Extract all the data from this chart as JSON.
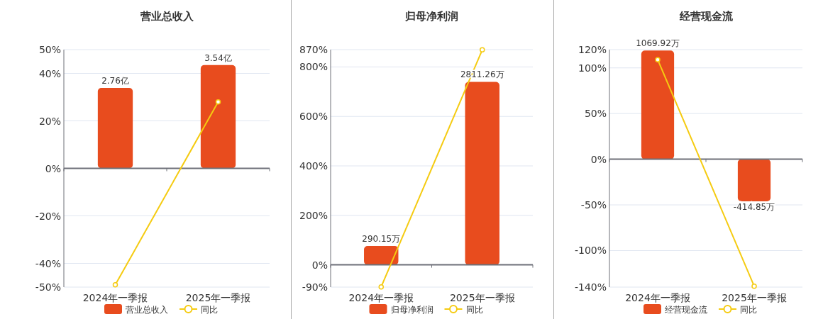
{
  "chart_data": [
    {
      "type": "bar",
      "title": "营业总收入",
      "categories": [
        "2024年一季报",
        "2025年一季报"
      ],
      "series": [
        {
          "name": "营业总收入",
          "color": "#e84c1e",
          "axis": "y2",
          "values": [
            2.76,
            3.54
          ],
          "value_labels": [
            "2.76亿",
            "3.54亿"
          ]
        },
        {
          "name": "同比",
          "type": "line",
          "color": "#f5cb11",
          "values": [
            -49,
            28
          ]
        }
      ],
      "ylim": [
        -50,
        50
      ],
      "yticks": [
        {
          "value": -50,
          "label": "-50%"
        },
        {
          "value": -40,
          "label": "-40%"
        },
        {
          "value": -20,
          "label": "-20%"
        },
        {
          "value": 0,
          "label": "0%"
        },
        {
          "value": 20,
          "label": "20%"
        },
        {
          "value": 40,
          "label": "40%"
        },
        {
          "value": 50,
          "label": "50%"
        }
      ],
      "y2lim": [
        -4.07,
        4.07
      ],
      "grid": "y",
      "legend": "bottom",
      "marker": "circle"
    },
    {
      "type": "bar",
      "title": "归母净利润",
      "categories": [
        "2024年一季报",
        "2025年一季报"
      ],
      "series": [
        {
          "name": "归母净利润",
          "color": "#e84c1e",
          "axis": "y2",
          "values": [
            290.15,
            2811.26
          ],
          "value_labels": [
            "290.15万",
            "2811.26万"
          ]
        },
        {
          "name": "同比",
          "type": "line",
          "color": "#f5cb11",
          "values": [
            -89,
            869
          ]
        }
      ],
      "ylim": [
        -90,
        870
      ],
      "yticks": [
        {
          "value": -90,
          "label": "-90%"
        },
        {
          "value": 0,
          "label": "0%"
        },
        {
          "value": 200,
          "label": "200%"
        },
        {
          "value": 400,
          "label": "400%"
        },
        {
          "value": 600,
          "label": "600%"
        },
        {
          "value": 800,
          "label": "800%"
        },
        {
          "value": 870,
          "label": "870%"
        }
      ],
      "y2lim": [
        -342,
        3306
      ],
      "grid": "y",
      "legend": "bottom",
      "marker": "circle"
    },
    {
      "type": "bar",
      "title": "经营现金流",
      "categories": [
        "2024年一季报",
        "2025年一季报"
      ],
      "series": [
        {
          "name": "经营现金流",
          "color": "#e84c1e",
          "axis": "y2",
          "values": [
            1069.92,
            -414.85
          ],
          "value_labels": [
            "1069.92万",
            "-414.85万"
          ]
        },
        {
          "name": "同比",
          "type": "line",
          "color": "#f5cb11",
          "values": [
            109,
            -139
          ]
        }
      ],
      "ylim": [
        -140,
        120
      ],
      "yticks": [
        {
          "value": -140,
          "label": "-140%"
        },
        {
          "value": -100,
          "label": "-100%"
        },
        {
          "value": -50,
          "label": "-50%"
        },
        {
          "value": 0,
          "label": "0%"
        },
        {
          "value": 50,
          "label": "50%"
        },
        {
          "value": 100,
          "label": "100%"
        },
        {
          "value": 120,
          "label": "120%"
        }
      ],
      "y2lim": [
        -1259,
        1079
      ],
      "grid": "y",
      "legend": "bottom",
      "marker": "circle"
    }
  ]
}
